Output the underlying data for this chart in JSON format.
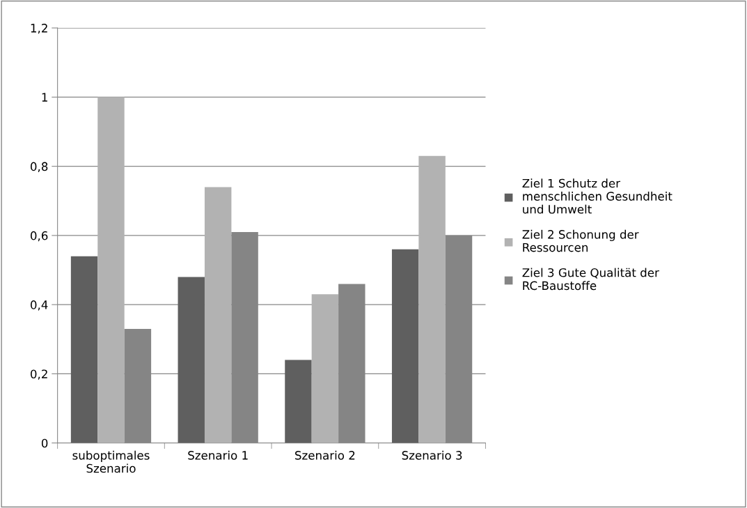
{
  "chart_data": {
    "type": "bar",
    "categories": [
      "suboptimales Szenario",
      "Szenario 1",
      "Szenario 2",
      "Szenario 3"
    ],
    "series": [
      {
        "name": "Ziel 1 Schutz der menschlichen Gesundheit und Umwelt",
        "color": "#5f5f5f",
        "values": [
          0.54,
          0.48,
          0.24,
          0.56
        ]
      },
      {
        "name": "Ziel 2 Schonung der Ressourcen",
        "color": "#b2b2b2",
        "values": [
          1.0,
          0.74,
          0.43,
          0.83
        ]
      },
      {
        "name": "Ziel 3 Gute Qualität der RC-Baustoffe",
        "color": "#858585",
        "values": [
          0.33,
          0.61,
          0.46,
          0.6
        ]
      }
    ],
    "ylim": [
      0,
      1.2
    ],
    "yticks": [
      0,
      {
        "value": 0.2,
        "label": "0,2"
      },
      {
        "value": 0.4,
        "label": "0,4"
      },
      {
        "value": 0.6,
        "label": "0,6"
      },
      {
        "value": 0.8,
        "label": "0,8"
      },
      1,
      {
        "value": 1.2,
        "label": "1,2"
      }
    ],
    "grid": "y",
    "legend": "right"
  }
}
